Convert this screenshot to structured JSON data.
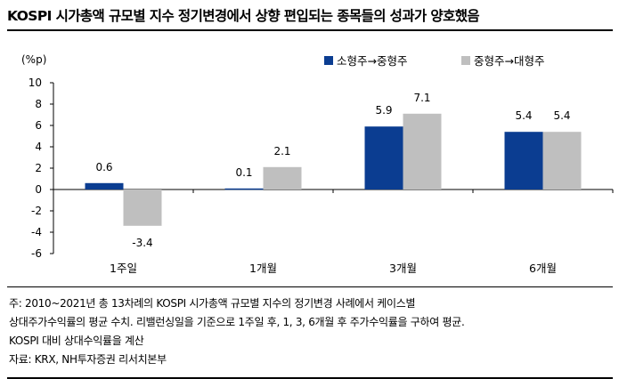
{
  "title": "KOSPI 시가총액 규모별 지수 정기변경에서 상향 편입되는 종목들의 성과가 양호했음",
  "notes": [
    "주: 2010~2021년 총 13차례의 KOSPI 시가총액 규모별 지수의 정기변경 사례에서 케이스별",
    "상대주가수익률의 평균 수치. 리밸런싱일을 기준으로 1주일 후, 1, 3, 6개월 후 주가수익률을 구하여 평균.",
    "KOSPI 대비 상대수익률을 계산",
    "자료: KRX, NH투자증권 리서치본부"
  ],
  "chart_data": {
    "type": "bar",
    "unit_label": "(%p)",
    "categories": [
      "1주일",
      "1개월",
      "3개월",
      "6개월"
    ],
    "series": [
      {
        "name": "소형주→중형주",
        "color": "#0b3d91",
        "values": [
          0.6,
          0.1,
          5.9,
          5.4
        ],
        "labels": [
          "0.6",
          "0.1",
          "5.9",
          "5.4"
        ]
      },
      {
        "name": "중형주→대형주",
        "color": "#bfbfbf",
        "values": [
          -3.4,
          2.1,
          7.1,
          5.4
        ],
        "labels": [
          "-3.4",
          "2.1",
          "7.1",
          "5.4"
        ]
      }
    ],
    "ylim": [
      -6,
      10
    ],
    "yticks": [
      10,
      8,
      6,
      4,
      2,
      0,
      -2,
      -4,
      -6
    ],
    "ytick_labels": [
      "10",
      "8",
      "6",
      "4",
      "2",
      "0",
      "-2",
      "-4",
      "-6"
    ],
    "grid": false,
    "legend": "top-right"
  }
}
